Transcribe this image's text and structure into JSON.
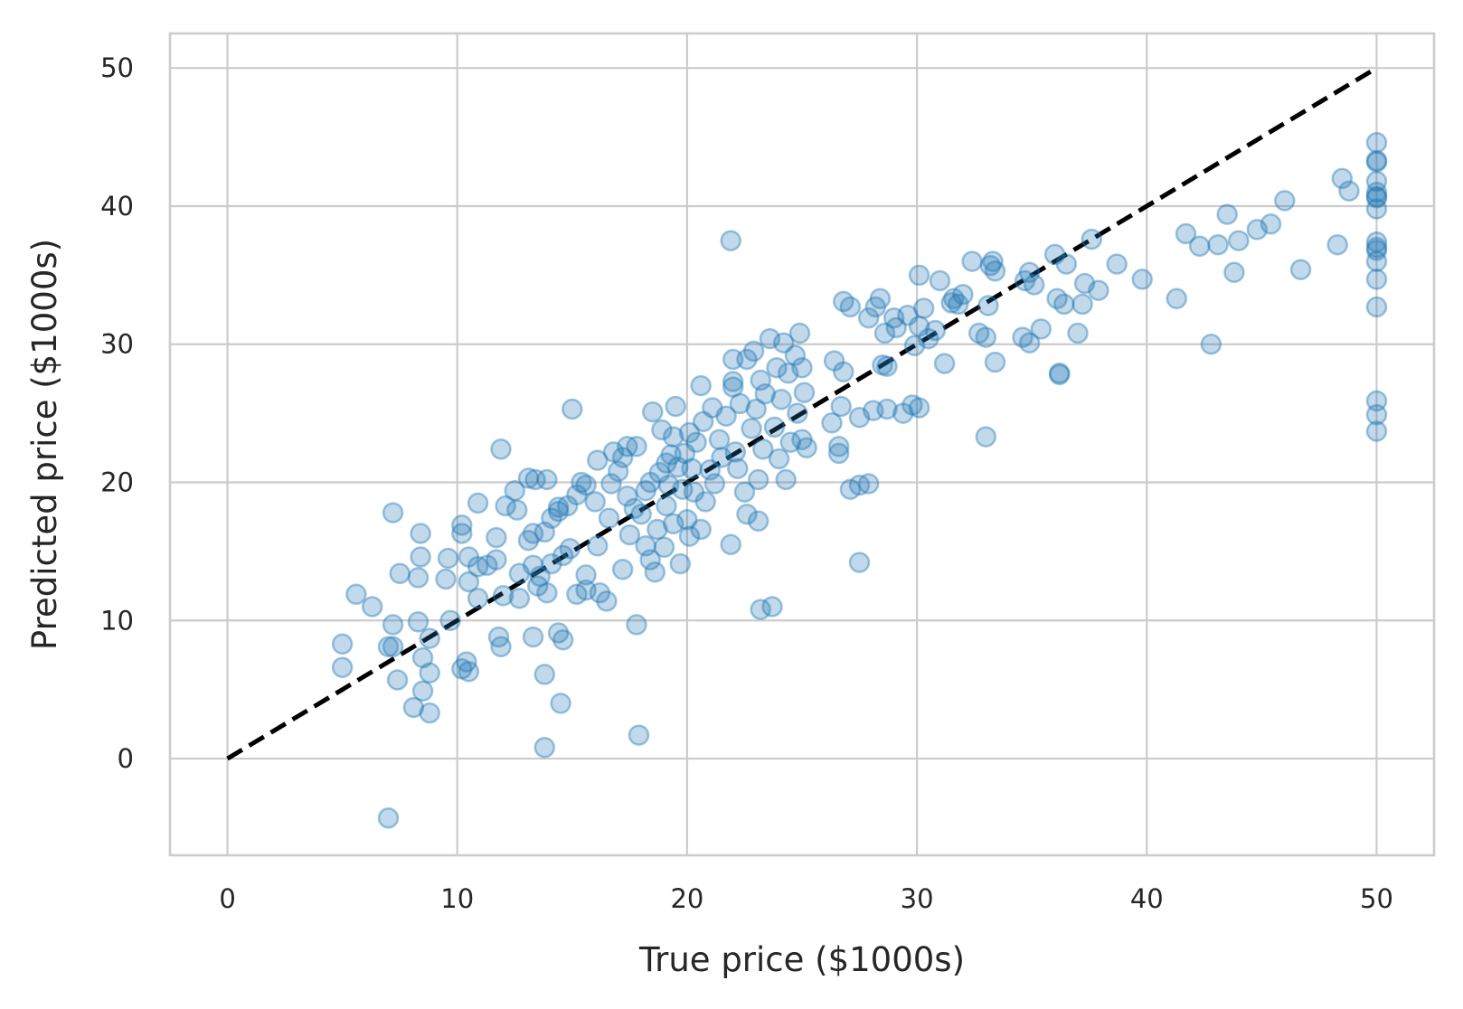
{
  "chart_data": {
    "type": "scatter",
    "title": "",
    "xlabel": "True price ($1000s)",
    "ylabel": "Predicted price ($1000s)",
    "xlim": [
      -2.5,
      52.5
    ],
    "ylim": [
      -7,
      52.5
    ],
    "xticks": [
      "0",
      "10",
      "20",
      "30",
      "40",
      "50"
    ],
    "yticks": [
      "0",
      "10",
      "20",
      "30",
      "40",
      "50"
    ],
    "grid": true,
    "reference_line": {
      "style": "dashed",
      "color": "#000000",
      "from": [
        0,
        0
      ],
      "to": [
        50,
        50
      ]
    },
    "series": [
      {
        "color": "#1f77b4",
        "points": [
          [
            5.0,
            8.3
          ],
          [
            5.0,
            6.6
          ],
          [
            5.6,
            11.9
          ],
          [
            6.3,
            11.0
          ],
          [
            7.0,
            8.1
          ],
          [
            7.2,
            8.1
          ],
          [
            7.2,
            9.7
          ],
          [
            7.2,
            17.8
          ],
          [
            7.0,
            -4.3
          ],
          [
            7.4,
            5.7
          ],
          [
            7.5,
            13.4
          ],
          [
            8.1,
            3.7
          ],
          [
            8.3,
            9.9
          ],
          [
            8.3,
            13.1
          ],
          [
            8.4,
            14.6
          ],
          [
            8.4,
            16.3
          ],
          [
            8.5,
            4.9
          ],
          [
            8.5,
            7.3
          ],
          [
            8.8,
            8.7
          ],
          [
            8.8,
            6.2
          ],
          [
            8.8,
            3.3
          ],
          [
            9.5,
            13.0
          ],
          [
            9.6,
            14.5
          ],
          [
            9.7,
            10.0
          ],
          [
            10.2,
            16.3
          ],
          [
            10.2,
            16.9
          ],
          [
            10.2,
            6.5
          ],
          [
            10.4,
            7.0
          ],
          [
            10.5,
            12.8
          ],
          [
            10.5,
            14.6
          ],
          [
            10.5,
            6.3
          ],
          [
            10.9,
            11.6
          ],
          [
            10.9,
            13.9
          ],
          [
            10.9,
            18.5
          ],
          [
            11.3,
            14.0
          ],
          [
            11.7,
            14.4
          ],
          [
            11.7,
            16.0
          ],
          [
            11.8,
            8.8
          ],
          [
            11.9,
            8.1
          ],
          [
            11.9,
            22.4
          ],
          [
            12.0,
            11.8
          ],
          [
            12.1,
            18.3
          ],
          [
            12.5,
            19.4
          ],
          [
            12.6,
            18.0
          ],
          [
            12.7,
            11.6
          ],
          [
            12.7,
            13.4
          ],
          [
            13.1,
            15.8
          ],
          [
            13.1,
            20.3
          ],
          [
            13.3,
            14.0
          ],
          [
            13.3,
            16.3
          ],
          [
            13.3,
            8.8
          ],
          [
            13.4,
            20.2
          ],
          [
            13.5,
            12.5
          ],
          [
            13.6,
            13.2
          ],
          [
            13.8,
            0.8
          ],
          [
            13.8,
            6.1
          ],
          [
            13.8,
            16.4
          ],
          [
            13.9,
            12.0
          ],
          [
            13.9,
            20.2
          ],
          [
            14.1,
            17.4
          ],
          [
            14.1,
            14.1
          ],
          [
            14.4,
            18.2
          ],
          [
            14.4,
            17.9
          ],
          [
            14.4,
            9.1
          ],
          [
            14.5,
            4.0
          ],
          [
            14.6,
            8.6
          ],
          [
            14.6,
            14.7
          ],
          [
            14.8,
            18.3
          ],
          [
            14.9,
            15.2
          ],
          [
            15.0,
            25.3
          ],
          [
            15.2,
            11.9
          ],
          [
            15.2,
            19.1
          ],
          [
            15.4,
            20.0
          ],
          [
            15.6,
            12.2
          ],
          [
            15.6,
            19.8
          ],
          [
            15.6,
            13.3
          ],
          [
            16.0,
            18.6
          ],
          [
            16.1,
            21.6
          ],
          [
            16.1,
            15.4
          ],
          [
            16.2,
            12.0
          ],
          [
            16.5,
            11.4
          ],
          [
            16.6,
            17.4
          ],
          [
            16.7,
            19.9
          ],
          [
            16.8,
            22.2
          ],
          [
            17.0,
            20.8
          ],
          [
            17.2,
            21.8
          ],
          [
            17.2,
            13.7
          ],
          [
            17.4,
            19.0
          ],
          [
            17.4,
            22.6
          ],
          [
            17.5,
            16.2
          ],
          [
            17.7,
            18.1
          ],
          [
            17.8,
            9.7
          ],
          [
            17.8,
            22.6
          ],
          [
            17.9,
            1.7
          ],
          [
            18.0,
            17.7
          ],
          [
            18.2,
            19.4
          ],
          [
            18.2,
            15.4
          ],
          [
            18.4,
            14.4
          ],
          [
            18.4,
            20.0
          ],
          [
            18.5,
            25.1
          ],
          [
            18.6,
            13.5
          ],
          [
            18.7,
            16.6
          ],
          [
            18.8,
            20.7
          ],
          [
            18.9,
            23.8
          ],
          [
            19.0,
            15.3
          ],
          [
            19.1,
            18.3
          ],
          [
            19.1,
            21.4
          ],
          [
            19.2,
            19.8
          ],
          [
            19.3,
            22.0
          ],
          [
            19.4,
            23.3
          ],
          [
            19.4,
            17.0
          ],
          [
            19.5,
            25.5
          ],
          [
            19.6,
            21.1
          ],
          [
            19.7,
            14.1
          ],
          [
            19.8,
            19.5
          ],
          [
            19.9,
            22.1
          ],
          [
            20.0,
            17.3
          ],
          [
            20.1,
            23.6
          ],
          [
            20.1,
            16.1
          ],
          [
            20.2,
            21.0
          ],
          [
            20.3,
            19.3
          ],
          [
            20.4,
            22.9
          ],
          [
            20.6,
            27.0
          ],
          [
            20.6,
            16.6
          ],
          [
            20.7,
            24.4
          ],
          [
            20.8,
            18.6
          ],
          [
            21.0,
            20.9
          ],
          [
            21.1,
            25.4
          ],
          [
            21.2,
            19.9
          ],
          [
            21.4,
            23.1
          ],
          [
            21.5,
            21.8
          ],
          [
            21.7,
            24.8
          ],
          [
            21.9,
            15.5
          ],
          [
            21.9,
            37.5
          ],
          [
            22.0,
            26.9
          ],
          [
            22.0,
            27.3
          ],
          [
            22.0,
            28.9
          ],
          [
            22.1,
            22.2
          ],
          [
            22.2,
            21.0
          ],
          [
            22.3,
            25.7
          ],
          [
            22.5,
            19.3
          ],
          [
            22.6,
            17.7
          ],
          [
            22.6,
            28.9
          ],
          [
            22.8,
            23.9
          ],
          [
            22.9,
            29.5
          ],
          [
            23.0,
            25.3
          ],
          [
            23.1,
            20.2
          ],
          [
            23.1,
            17.2
          ],
          [
            23.2,
            10.8
          ],
          [
            23.2,
            27.4
          ],
          [
            23.3,
            22.4
          ],
          [
            23.4,
            26.4
          ],
          [
            23.6,
            30.4
          ],
          [
            23.7,
            11.0
          ],
          [
            23.8,
            24.0
          ],
          [
            23.9,
            28.3
          ],
          [
            24.0,
            21.7
          ],
          [
            24.1,
            26.0
          ],
          [
            24.2,
            30.1
          ],
          [
            24.3,
            20.2
          ],
          [
            24.4,
            27.9
          ],
          [
            24.5,
            22.9
          ],
          [
            24.7,
            29.2
          ],
          [
            24.8,
            25.0
          ],
          [
            24.9,
            30.8
          ],
          [
            25.0,
            23.1
          ],
          [
            25.0,
            28.3
          ],
          [
            25.1,
            26.5
          ],
          [
            25.2,
            22.5
          ],
          [
            26.3,
            24.3
          ],
          [
            26.4,
            28.8
          ],
          [
            26.6,
            22.6
          ],
          [
            26.6,
            22.1
          ],
          [
            26.7,
            25.5
          ],
          [
            26.8,
            33.1
          ],
          [
            26.8,
            28.0
          ],
          [
            27.1,
            32.7
          ],
          [
            27.1,
            19.5
          ],
          [
            27.5,
            14.2
          ],
          [
            27.5,
            19.8
          ],
          [
            27.5,
            24.7
          ],
          [
            27.9,
            19.9
          ],
          [
            27.9,
            31.9
          ],
          [
            28.1,
            25.2
          ],
          [
            28.2,
            32.7
          ],
          [
            28.4,
            33.3
          ],
          [
            28.5,
            28.5
          ],
          [
            28.6,
            30.8
          ],
          [
            28.7,
            25.3
          ],
          [
            28.7,
            28.4
          ],
          [
            29.0,
            31.9
          ],
          [
            29.1,
            31.2
          ],
          [
            29.4,
            25.0
          ],
          [
            29.6,
            32.1
          ],
          [
            29.8,
            25.6
          ],
          [
            29.9,
            29.9
          ],
          [
            30.1,
            35.0
          ],
          [
            30.1,
            31.3
          ],
          [
            30.1,
            25.4
          ],
          [
            30.3,
            32.6
          ],
          [
            30.5,
            30.4
          ],
          [
            30.8,
            31.0
          ],
          [
            31.0,
            34.6
          ],
          [
            31.2,
            28.6
          ],
          [
            31.5,
            33.0
          ],
          [
            31.6,
            33.3
          ],
          [
            31.8,
            32.9
          ],
          [
            32.0,
            33.6
          ],
          [
            32.4,
            36.0
          ],
          [
            32.7,
            30.8
          ],
          [
            33.0,
            30.5
          ],
          [
            33.0,
            23.3
          ],
          [
            33.1,
            32.8
          ],
          [
            33.2,
            35.7
          ],
          [
            33.3,
            36.0
          ],
          [
            33.4,
            35.3
          ],
          [
            33.4,
            28.7
          ],
          [
            34.6,
            30.5
          ],
          [
            34.7,
            34.6
          ],
          [
            34.9,
            30.1
          ],
          [
            34.9,
            35.2
          ],
          [
            35.1,
            34.3
          ],
          [
            35.4,
            31.1
          ],
          [
            36.0,
            36.5
          ],
          [
            36.1,
            33.3
          ],
          [
            36.2,
            27.8
          ],
          [
            36.2,
            27.9
          ],
          [
            36.4,
            32.9
          ],
          [
            36.5,
            35.8
          ],
          [
            37.0,
            30.8
          ],
          [
            37.2,
            32.9
          ],
          [
            37.3,
            34.4
          ],
          [
            37.6,
            37.6
          ],
          [
            37.9,
            33.9
          ],
          [
            38.7,
            35.8
          ],
          [
            39.8,
            34.7
          ],
          [
            41.3,
            33.3
          ],
          [
            41.7,
            38.0
          ],
          [
            42.3,
            37.1
          ],
          [
            42.8,
            30.0
          ],
          [
            43.1,
            37.2
          ],
          [
            43.5,
            39.4
          ],
          [
            43.8,
            35.2
          ],
          [
            44.0,
            37.5
          ],
          [
            44.8,
            38.3
          ],
          [
            45.4,
            38.7
          ],
          [
            46.0,
            40.4
          ],
          [
            46.7,
            35.4
          ],
          [
            48.3,
            37.2
          ],
          [
            48.5,
            42.0
          ],
          [
            48.8,
            41.1
          ],
          [
            50.0,
            44.6
          ],
          [
            50.0,
            43.3
          ],
          [
            50.0,
            43.2
          ],
          [
            50.0,
            41.8
          ],
          [
            50.0,
            41.0
          ],
          [
            50.0,
            40.7
          ],
          [
            50.0,
            40.6
          ],
          [
            50.0,
            39.8
          ],
          [
            50.0,
            37.4
          ],
          [
            50.0,
            37.0
          ],
          [
            50.0,
            36.8
          ],
          [
            50.0,
            36.0
          ],
          [
            50.0,
            34.7
          ],
          [
            50.0,
            32.7
          ],
          [
            50.0,
            25.9
          ],
          [
            50.0,
            24.9
          ],
          [
            50.0,
            23.7
          ]
        ]
      }
    ]
  }
}
